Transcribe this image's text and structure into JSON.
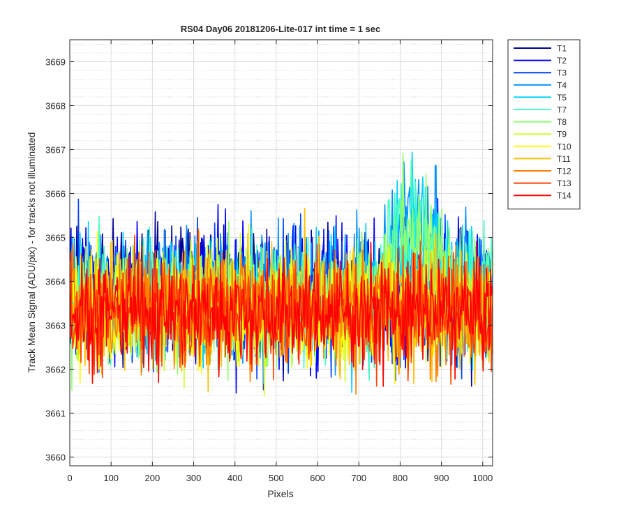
{
  "chart_data": {
    "type": "line",
    "title": "RS04 Day06 20181206-Lite-017 int time = 1 sec",
    "xlabel": "Pixels",
    "ylabel": "Track Mean Signal (ADU/pix) - for tracks not illuminated",
    "xlim": [
      0,
      1024
    ],
    "ylim": [
      3659.8,
      3669.5
    ],
    "x_ticks": [
      0,
      100,
      200,
      300,
      400,
      500,
      600,
      700,
      800,
      900,
      1000
    ],
    "y_ticks": [
      3660,
      3661,
      3662,
      3663,
      3664,
      3665,
      3666,
      3667,
      3668,
      3669
    ],
    "grid": true,
    "minor_grid": true,
    "legend_position": "outside-top-right",
    "series": [
      {
        "name": "T1",
        "color": "#00008f",
        "mean": 3663.8,
        "noise": 1.25
      },
      {
        "name": "T2",
        "color": "#0000ff",
        "mean": 3663.8,
        "noise": 1.25
      },
      {
        "name": "T3",
        "color": "#0040ff",
        "mean": 3663.7,
        "noise": 1.2
      },
      {
        "name": "T4",
        "color": "#0090ff",
        "mean": 3663.7,
        "noise": 1.2
      },
      {
        "name": "T5",
        "color": "#00cfff",
        "mean": 3663.6,
        "noise": 1.2
      },
      {
        "name": "T7",
        "color": "#40ffbf",
        "mean": 3663.6,
        "noise": 1.15
      },
      {
        "name": "T8",
        "color": "#8fff70",
        "mean": 3663.5,
        "noise": 1.1
      },
      {
        "name": "T9",
        "color": "#cfff30",
        "mean": 3663.5,
        "noise": 1.1
      },
      {
        "name": "T10",
        "color": "#ffff00",
        "mean": 3663.4,
        "noise": 1.1
      },
      {
        "name": "T11",
        "color": "#ffbf00",
        "mean": 3663.4,
        "noise": 1.1
      },
      {
        "name": "T12",
        "color": "#ff8000",
        "mean": 3663.4,
        "noise": 1.05
      },
      {
        "name": "T13",
        "color": "#ff4000",
        "mean": 3663.3,
        "noise": 1.05
      },
      {
        "name": "T14",
        "color": "#ff0000",
        "mean": 3663.3,
        "noise": 1.0
      }
    ]
  }
}
